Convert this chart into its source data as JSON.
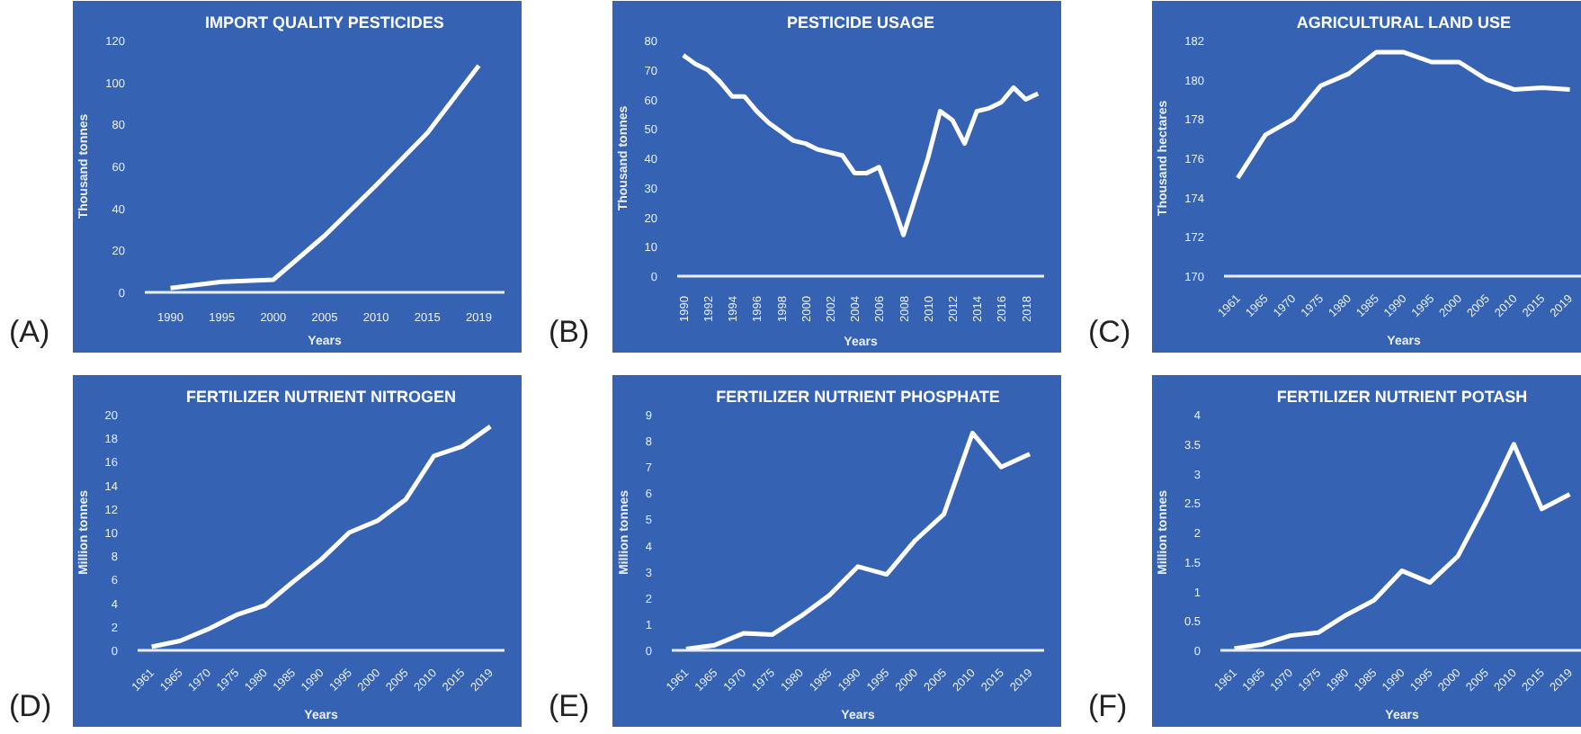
{
  "chart_data": [
    {
      "type": "line",
      "title": "IMPORT QUALITY PESTICIDES",
      "xlabel": "Years",
      "ylabel": "Thousand tonnes",
      "annotations": [
        "(A)"
      ],
      "grid": false,
      "color": "#ffffff",
      "categories": [
        "1990",
        "1995",
        "2000",
        "2005",
        "2010",
        "2015",
        "2019"
      ],
      "values": [
        2,
        5,
        6,
        27,
        51,
        76,
        108
      ],
      "ylim": [
        0,
        120
      ],
      "yticks": [
        0,
        20,
        40,
        60,
        80,
        100,
        120
      ]
    },
    {
      "type": "line",
      "title": "PESTICIDE USAGE",
      "xlabel": "Years",
      "ylabel": "Thousand tonnes",
      "annotations": [
        "(B)"
      ],
      "grid": false,
      "color": "#ffffff",
      "categories": [
        "1990",
        null,
        "1992",
        null,
        "1994",
        null,
        "1996",
        null,
        "1998",
        null,
        "2000",
        null,
        "2002",
        null,
        "2004",
        null,
        "2006",
        null,
        "2008",
        null,
        "2010",
        null,
        "2012",
        null,
        "2014",
        null,
        "2016",
        null,
        "2018",
        null
      ],
      "values": [
        75,
        72,
        70,
        66,
        61,
        61,
        56,
        52,
        49,
        46,
        45,
        43,
        42,
        41,
        35,
        35,
        37,
        26,
        14,
        27,
        40,
        56,
        53,
        45,
        56,
        57,
        59,
        64,
        60,
        62
      ],
      "ylim": [
        0,
        80
      ],
      "yticks": [
        0,
        10,
        20,
        30,
        40,
        50,
        60,
        70,
        80
      ]
    },
    {
      "type": "line",
      "title": "AGRICULTURAL LAND USE",
      "xlabel": "Years",
      "ylabel": "Thousand hectares",
      "annotations": [
        "(C)"
      ],
      "grid": false,
      "color": "#ffffff",
      "categories": [
        "1961",
        "1965",
        "1970",
        "1975",
        "1980",
        "1985",
        "1990",
        "1995",
        "2000",
        "2005",
        "2010",
        "2015",
        "2019"
      ],
      "values": [
        175,
        177.2,
        178,
        179.7,
        180.3,
        181.4,
        181.4,
        180.9,
        180.9,
        180,
        179.5,
        179.6,
        179.5
      ],
      "ylim": [
        170,
        182
      ],
      "yticks": [
        170,
        172,
        174,
        176,
        178,
        180,
        182
      ]
    },
    {
      "type": "line",
      "title": "FERTILIZER NUTRIENT NITROGEN",
      "xlabel": "Years",
      "ylabel": "Million tonnes",
      "annotations": [
        "(D)"
      ],
      "grid": false,
      "color": "#ffffff",
      "categories": [
        "1961",
        "1965",
        "1970",
        "1975",
        "1980",
        "1985",
        "1990",
        "1995",
        "2000",
        "2005",
        "2010",
        "2015",
        "2019"
      ],
      "values": [
        0.3,
        0.8,
        1.8,
        3,
        3.8,
        5.8,
        7.7,
        10,
        11,
        12.8,
        16.5,
        17.3,
        19
      ],
      "ylim": [
        0,
        20
      ],
      "yticks": [
        0,
        2,
        4,
        6,
        8,
        10,
        12,
        14,
        16,
        18,
        20
      ]
    },
    {
      "type": "line",
      "title": "FERTILIZER NUTRIENT PHOSPHATE",
      "xlabel": "Years",
      "ylabel": "Million tonnes",
      "annotations": [
        "(E)"
      ],
      "grid": false,
      "color": "#ffffff",
      "categories": [
        "1961",
        "1965",
        "1970",
        "1975",
        "1980",
        "1985",
        "1990",
        "1995",
        "2000",
        "2005",
        "2010",
        "2015",
        "2019"
      ],
      "values": [
        0.05,
        0.2,
        0.65,
        0.6,
        1.3,
        2.1,
        3.2,
        2.9,
        4.2,
        5.2,
        8.3,
        7,
        7.5
      ],
      "ylim": [
        0,
        9
      ],
      "yticks": [
        0,
        1,
        2,
        3,
        4,
        5,
        6,
        7,
        8,
        9
      ]
    },
    {
      "type": "line",
      "title": "FERTILIZER NUTRIENT POTASH",
      "xlabel": "Years",
      "ylabel": "Million tonnes",
      "annotations": [
        "(F)"
      ],
      "grid": false,
      "color": "#ffffff",
      "categories": [
        "1961",
        "1965",
        "1970",
        "1975",
        "1980",
        "1985",
        "1990",
        "1995",
        "2000",
        "2005",
        "2010",
        "2015",
        "2019"
      ],
      "values": [
        0.03,
        0.1,
        0.25,
        0.3,
        0.6,
        0.85,
        1.35,
        1.15,
        1.6,
        2.5,
        3.5,
        2.4,
        2.65
      ],
      "ylim": [
        0,
        4
      ],
      "yticks": [
        0,
        0.5,
        1,
        1.5,
        2,
        2.5,
        3,
        3.5,
        4
      ]
    }
  ]
}
